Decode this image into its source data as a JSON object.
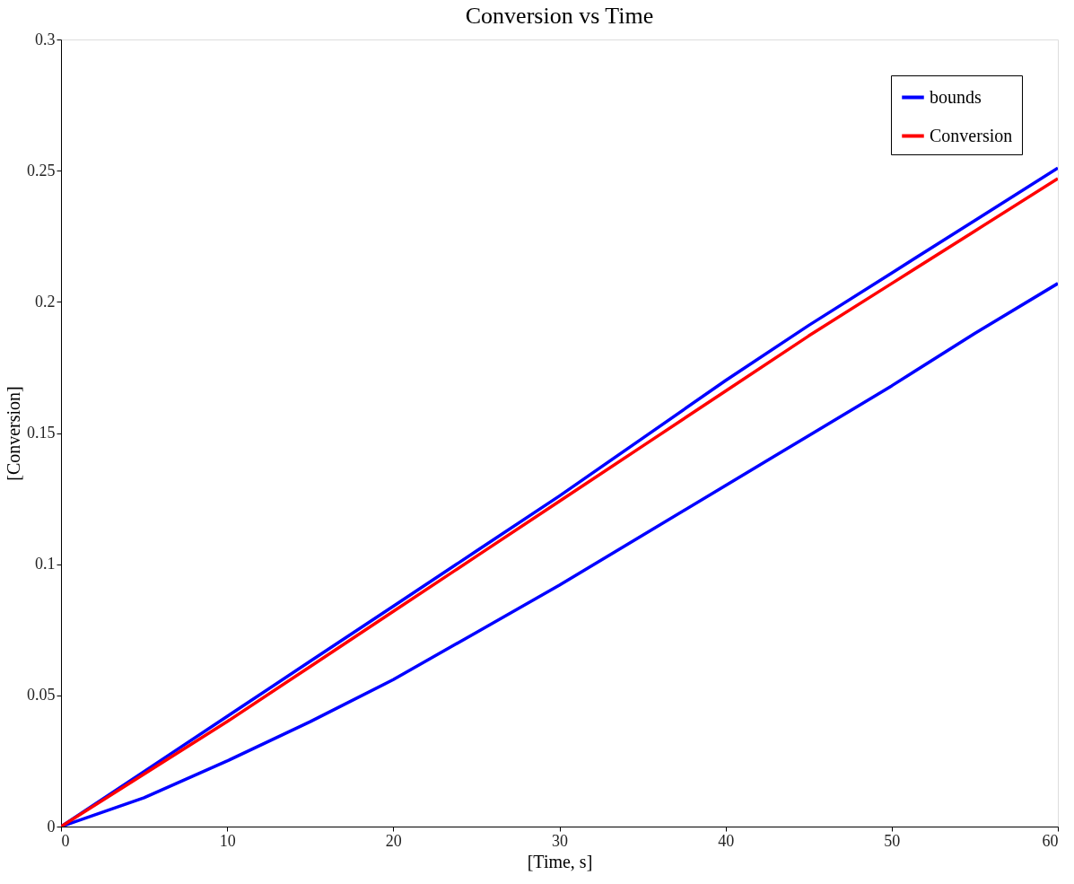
{
  "chart_data": {
    "type": "line",
    "title": "Conversion vs Time",
    "xlabel": "[Time, s]",
    "ylabel": "[Conversion]",
    "xlim": [
      0,
      60
    ],
    "ylim": [
      0,
      0.3
    ],
    "xticks": [
      0,
      10,
      20,
      30,
      40,
      50,
      60
    ],
    "yticks": [
      0,
      0.05,
      0.1,
      0.15,
      0.2,
      0.25,
      0.3
    ],
    "grid": false,
    "legend": "top right",
    "line_style": "solid",
    "marker": "none",
    "series": [
      {
        "name": "bounds",
        "color": "#0000ff",
        "x": [
          0,
          5,
          10,
          15,
          20,
          25,
          30,
          35,
          40,
          45,
          50,
          55,
          60
        ],
        "values": [
          0,
          0.021,
          0.042,
          0.063,
          0.084,
          0.105,
          0.126,
          0.148,
          0.17,
          0.191,
          0.211,
          0.231,
          0.251
        ]
      },
      {
        "name": "Conversion",
        "color": "#ff0000",
        "x": [
          0,
          5,
          10,
          15,
          20,
          25,
          30,
          35,
          40,
          45,
          50,
          55,
          60
        ],
        "values": [
          0,
          0.02,
          0.04,
          0.061,
          0.082,
          0.103,
          0.124,
          0.145,
          0.166,
          0.187,
          0.207,
          0.227,
          0.247
        ]
      },
      {
        "color": "#0000ff",
        "x": [
          0,
          5,
          10,
          15,
          20,
          25,
          30,
          35,
          40,
          45,
          50,
          55,
          60
        ],
        "values": [
          0,
          0.011,
          0.025,
          0.04,
          0.056,
          0.074,
          0.092,
          0.111,
          0.13,
          0.149,
          0.168,
          0.188,
          0.207
        ]
      }
    ]
  }
}
